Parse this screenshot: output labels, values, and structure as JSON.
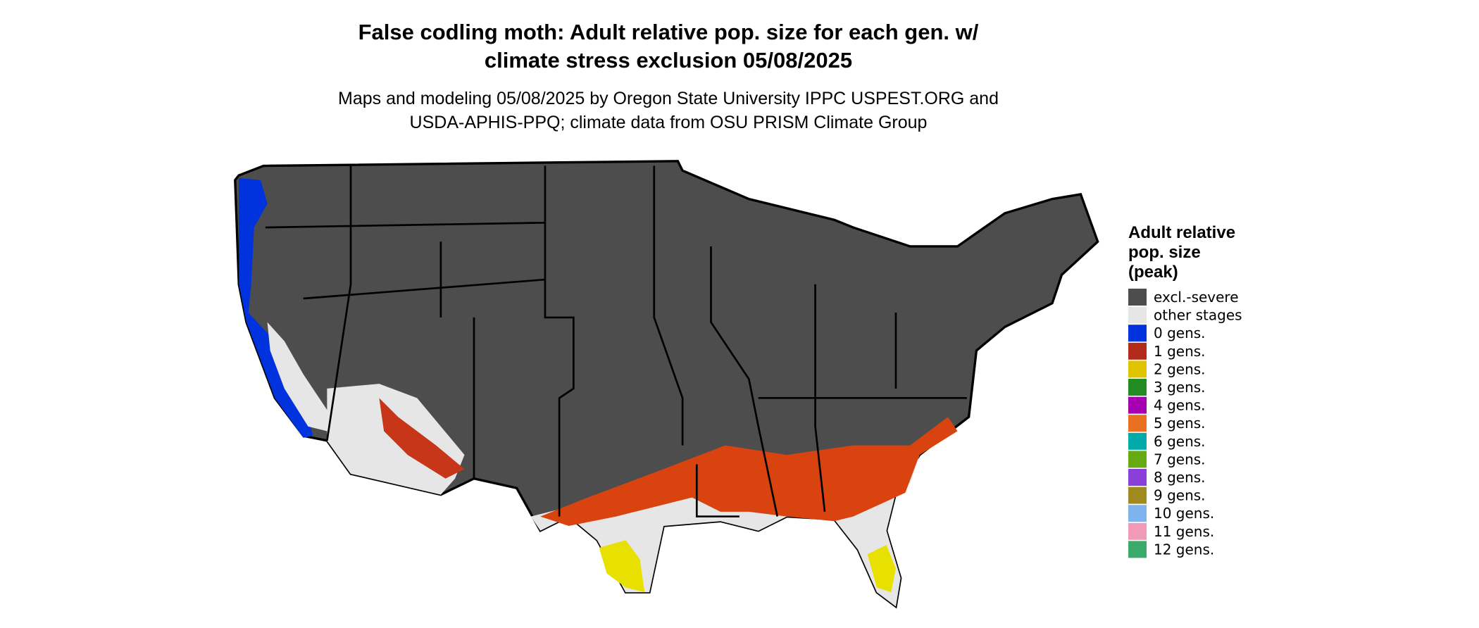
{
  "title": {
    "lines": [
      "False codling moth: Adult relative pop. size for each gen. w/",
      "climate stress exclusion 05/08/2025"
    ]
  },
  "subtitle": {
    "lines": [
      "Maps and modeling 05/08/2025 by Oregon State University IPPC USPEST.ORG and",
      "USDA-APHIS-PPQ; climate data from OSU PRISM Climate Group"
    ]
  },
  "legend": {
    "title": {
      "lines": [
        "Adult relative",
        "pop. size",
        "(peak)"
      ]
    },
    "items": [
      {
        "label": "excl.-severe",
        "color": "#4d4d4d"
      },
      {
        "label": "other stages",
        "color": "#e6e6e6"
      },
      {
        "label": "0 gens.",
        "color": "#0033dd"
      },
      {
        "label": "1 gens.",
        "color": "#b22a1a"
      },
      {
        "label": "2 gens.",
        "color": "#e0c400"
      },
      {
        "label": "3 gens.",
        "color": "#228b22"
      },
      {
        "label": "4 gens.",
        "color": "#a400b0"
      },
      {
        "label": "5 gens.",
        "color": "#e87020"
      },
      {
        "label": "6 gens.",
        "color": "#00aaaa"
      },
      {
        "label": "7 gens.",
        "color": "#66aa11"
      },
      {
        "label": "8 gens.",
        "color": "#8a3fd8"
      },
      {
        "label": "9 gens.",
        "color": "#a08a20"
      },
      {
        "label": "10 gens.",
        "color": "#7fb3ee"
      },
      {
        "label": "11 gens.",
        "color": "#f09ab8"
      },
      {
        "label": "12 gens.",
        "color": "#3aaa6a"
      }
    ]
  }
}
